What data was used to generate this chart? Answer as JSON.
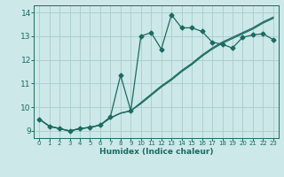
{
  "xlabel": "Humidex (Indice chaleur)",
  "xlim": [
    -0.5,
    23.5
  ],
  "ylim": [
    8.7,
    14.3
  ],
  "xticks": [
    0,
    1,
    2,
    3,
    4,
    5,
    6,
    7,
    8,
    9,
    10,
    11,
    12,
    13,
    14,
    15,
    16,
    17,
    18,
    19,
    20,
    21,
    22,
    23
  ],
  "yticks": [
    9,
    10,
    11,
    12,
    13,
    14
  ],
  "bg_color": "#cce8e8",
  "grid_color": "#aacccc",
  "line_color": "#1a6b60",
  "line1_x": [
    0,
    1,
    2,
    3,
    4,
    5,
    6,
    7,
    8,
    9,
    10,
    11,
    12,
    13,
    14,
    15,
    16,
    17,
    18,
    19,
    20,
    21,
    22,
    23
  ],
  "line1_y": [
    9.5,
    9.2,
    9.1,
    9.0,
    9.1,
    9.15,
    9.25,
    9.55,
    9.75,
    9.85,
    10.15,
    10.5,
    10.85,
    11.15,
    11.5,
    11.8,
    12.15,
    12.45,
    12.7,
    12.9,
    13.1,
    13.3,
    13.55,
    13.75
  ],
  "line2_x": [
    0,
    1,
    2,
    3,
    4,
    5,
    6,
    7,
    8,
    9,
    10,
    11,
    12,
    13,
    14,
    15,
    16,
    17,
    18,
    19,
    20,
    21,
    22,
    23
  ],
  "line2_y": [
    9.5,
    9.2,
    9.1,
    9.0,
    9.1,
    9.15,
    9.25,
    9.55,
    9.75,
    9.85,
    10.2,
    10.55,
    10.9,
    11.2,
    11.55,
    11.85,
    12.2,
    12.5,
    12.75,
    12.95,
    13.15,
    13.35,
    13.6,
    13.8
  ],
  "line3_x": [
    0,
    1,
    2,
    3,
    4,
    5,
    6,
    7,
    8,
    9,
    10,
    11,
    12,
    13,
    14,
    15,
    16,
    17,
    18,
    19,
    20,
    21,
    22,
    23
  ],
  "line3_y": [
    9.5,
    9.2,
    9.1,
    9.0,
    9.1,
    9.15,
    9.25,
    9.6,
    11.35,
    9.85,
    13.0,
    13.15,
    12.45,
    13.9,
    13.35,
    13.35,
    13.2,
    12.75,
    12.65,
    12.5,
    12.95,
    13.05,
    13.1,
    12.85
  ]
}
